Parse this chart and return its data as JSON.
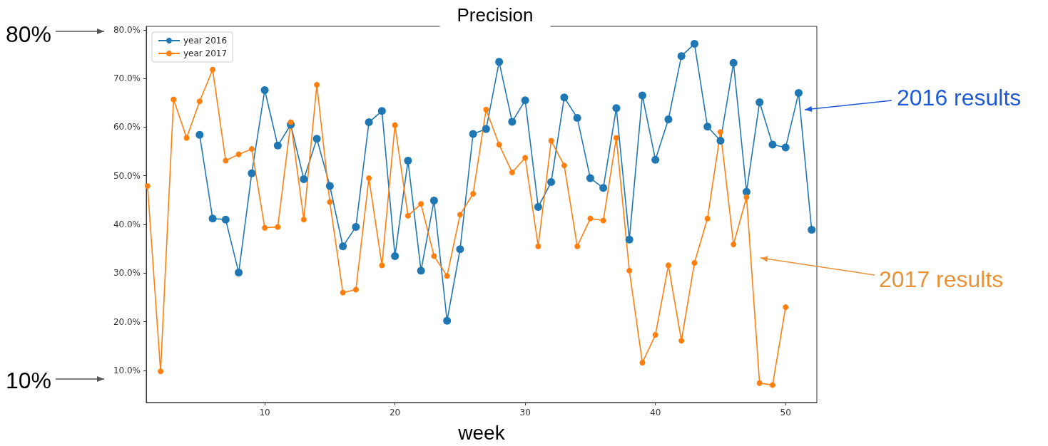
{
  "chart_data": {
    "type": "line",
    "title": "Precision",
    "xlabel": "week",
    "annotations": [
      "80%",
      "10%",
      "2016 results",
      "2017 results"
    ],
    "xlim": [
      0.9,
      52.4
    ],
    "xticks": [
      10,
      20,
      30,
      40,
      50
    ],
    "ylim": [
      3.4,
      80.7
    ],
    "yticks": [
      {
        "value": 10,
        "label": "10.0%"
      },
      {
        "value": 20,
        "label": "20.0%"
      },
      {
        "value": 30,
        "label": "30.0%"
      },
      {
        "value": 40,
        "label": "40.0%"
      },
      {
        "value": 50,
        "label": "50.0%"
      },
      {
        "value": 60,
        "label": "60.0%"
      },
      {
        "value": 70,
        "label": "70.0%"
      },
      {
        "value": 80,
        "label": "80.0%"
      }
    ],
    "grid": false,
    "legend": "top left",
    "marker": "circle",
    "line_style": "solid",
    "series": [
      {
        "name": "year 2016",
        "color": "#1f77b4",
        "x": [
          5,
          6,
          7,
          8,
          9,
          10,
          11,
          12,
          13,
          14,
          15,
          16,
          17,
          18,
          19,
          20,
          21,
          22,
          23,
          24,
          25,
          26,
          27,
          28,
          29,
          30,
          31,
          32,
          33,
          34,
          35,
          36,
          37,
          38,
          39,
          40,
          41,
          42,
          43,
          44,
          45,
          46,
          47,
          48,
          49,
          50,
          51,
          52
        ],
        "values": [
          58.4,
          41.2,
          41.0,
          30.1,
          50.5,
          67.6,
          56.2,
          60.5,
          49.3,
          57.6,
          47.9,
          35.5,
          39.5,
          61.0,
          63.3,
          33.5,
          53.1,
          30.5,
          44.9,
          20.2,
          34.9,
          58.6,
          59.6,
          73.4,
          61.1,
          65.5,
          43.6,
          48.7,
          66.1,
          61.9,
          49.5,
          47.5,
          63.9,
          36.9,
          66.5,
          53.3,
          61.6,
          74.6,
          77.1,
          60.1,
          57.2,
          73.2,
          46.7,
          65.1,
          56.4,
          55.8,
          67.0,
          38.9
        ]
      },
      {
        "name": "year 2017",
        "color": "#ff7f0e",
        "x": [
          1,
          2,
          3,
          4,
          5,
          6,
          7,
          8,
          9,
          10,
          11,
          12,
          13,
          14,
          15,
          16,
          17,
          18,
          19,
          20,
          21,
          22,
          23,
          24,
          25,
          26,
          27,
          28,
          29,
          30,
          31,
          32,
          33,
          34,
          35,
          36,
          37,
          38,
          39,
          40,
          41,
          42,
          43,
          44,
          45,
          46,
          47,
          48,
          49,
          50
        ],
        "values": [
          47.9,
          9.8,
          65.7,
          57.8,
          65.3,
          71.8,
          53.1,
          54.4,
          55.5,
          39.3,
          39.5,
          61.0,
          41.0,
          68.7,
          44.6,
          26.0,
          26.6,
          49.5,
          31.6,
          60.4,
          41.8,
          44.2,
          33.5,
          29.4,
          42.0,
          46.3,
          63.6,
          56.4,
          50.7,
          53.7,
          35.5,
          57.2,
          52.1,
          35.5,
          41.2,
          40.8,
          57.8,
          30.5,
          11.6,
          17.3,
          31.6,
          16.1,
          32.1,
          41.2,
          59.0,
          35.9,
          45.6,
          7.4,
          7.0,
          23.0
        ]
      }
    ]
  }
}
